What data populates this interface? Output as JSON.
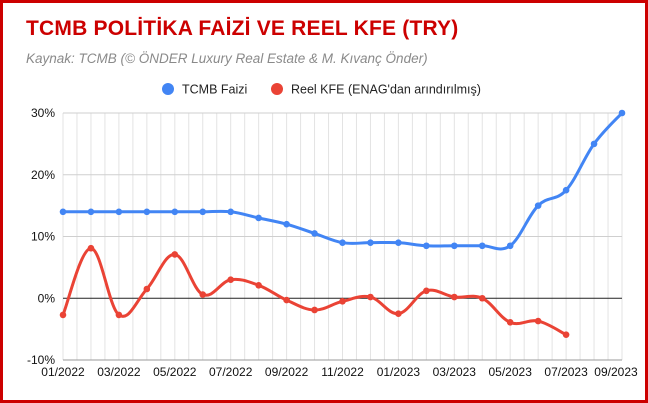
{
  "header": {
    "title": "TCMB POLİTİKA FAİZİ VE REEL KFE (TRY)",
    "subtitle": "Kaynak: TCMB (© ÖNDER Luxury Real Estate & M. Kıvanç Önder)"
  },
  "chart_data": {
    "type": "line",
    "title": "TCMB POLİTİKA FAİZİ VE REEL KFE (TRY)",
    "subtitle": "Kaynak: TCMB (© ÖNDER Luxury Real Estate & M. Kıvanç Önder)",
    "xlabel": "",
    "ylabel": "",
    "x": [
      "01/2022",
      "02/2022",
      "03/2022",
      "04/2022",
      "05/2022",
      "06/2022",
      "07/2022",
      "08/2022",
      "09/2022",
      "10/2022",
      "11/2022",
      "12/2022",
      "01/2023",
      "02/2023",
      "03/2023",
      "04/2023",
      "05/2023",
      "06/2023",
      "07/2023",
      "08/2023",
      "09/2023"
    ],
    "x_tick_labels": [
      "01/2022",
      "03/2022",
      "05/2022",
      "07/2022",
      "09/2022",
      "11/2022",
      "01/2023",
      "03/2023",
      "05/2023",
      "07/2023",
      "09/2023"
    ],
    "y_tick_labels": [
      "-10%",
      "0%",
      "10%",
      "20%",
      "30%"
    ],
    "ylim": [
      -10,
      30
    ],
    "grid": true,
    "legend_position": "top",
    "series": [
      {
        "name": "TCMB Faizi",
        "color": "#4285f4",
        "values": [
          14,
          14,
          14,
          14,
          14,
          14,
          14,
          13,
          12,
          10.5,
          9,
          9,
          9,
          8.5,
          8.5,
          8.5,
          8.5,
          15,
          17.5,
          25,
          30
        ]
      },
      {
        "name": "Reel KFE (ENAG'dan arındırılmış)",
        "color": "#ea4335",
        "values": [
          -2.7,
          8.1,
          -2.7,
          1.5,
          7.1,
          0.6,
          3.0,
          2.1,
          -0.3,
          -1.9,
          -0.5,
          0.2,
          -2.5,
          1.2,
          0.2,
          0.0,
          -3.9,
          -3.7,
          -5.9,
          null,
          null
        ]
      }
    ]
  }
}
